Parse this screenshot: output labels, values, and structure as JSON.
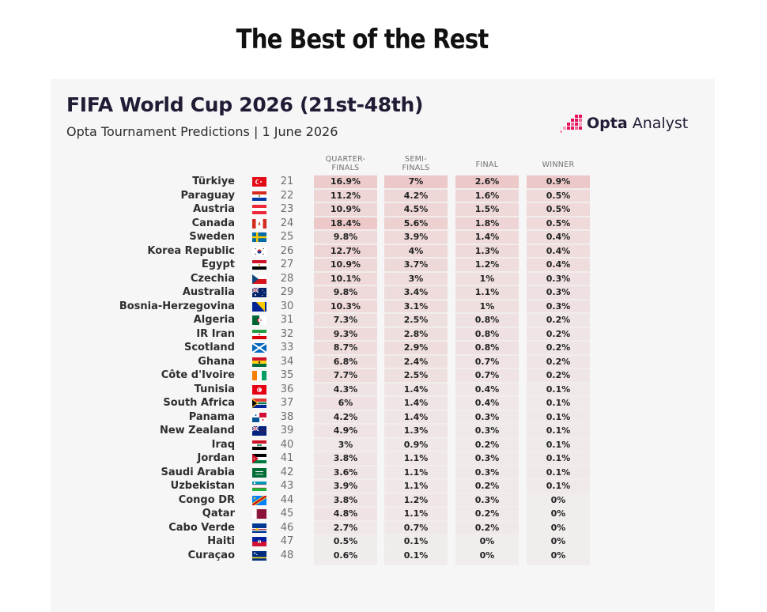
{
  "page_heading": "The Best of the Rest",
  "chart_data": {
    "type": "table",
    "title": "FIFA World Cup 2026 (21st-48th)",
    "subtitle": "Opta Tournament Predictions | 1 June 2026",
    "brand": {
      "name_bold": "Opta",
      "name_light": " Analyst",
      "color": "#e5135f"
    },
    "columns": [
      "QUARTER-FINALS",
      "SEMI-FINALS",
      "FINAL",
      "WINNER"
    ],
    "heat_color": "#e8a4a4",
    "rows": [
      {
        "team": "Türkiye",
        "flag": "tur",
        "rank": "21",
        "qf": "16.9%",
        "sf": "7%",
        "final": "2.6%",
        "winner": "0.9%"
      },
      {
        "team": "Paraguay",
        "flag": "par",
        "rank": "22",
        "qf": "11.2%",
        "sf": "4.2%",
        "final": "1.6%",
        "winner": "0.5%"
      },
      {
        "team": "Austria",
        "flag": "aut",
        "rank": "23",
        "qf": "10.9%",
        "sf": "4.5%",
        "final": "1.5%",
        "winner": "0.5%"
      },
      {
        "team": "Canada",
        "flag": "can",
        "rank": "24",
        "qf": "18.4%",
        "sf": "5.6%",
        "final": "1.8%",
        "winner": "0.5%"
      },
      {
        "team": "Sweden",
        "flag": "swe",
        "rank": "25",
        "qf": "9.8%",
        "sf": "3.9%",
        "final": "1.4%",
        "winner": "0.4%"
      },
      {
        "team": "Korea Republic",
        "flag": "kor",
        "rank": "26",
        "qf": "12.7%",
        "sf": "4%",
        "final": "1.3%",
        "winner": "0.4%"
      },
      {
        "team": "Egypt",
        "flag": "egy",
        "rank": "27",
        "qf": "10.9%",
        "sf": "3.7%",
        "final": "1.2%",
        "winner": "0.4%"
      },
      {
        "team": "Czechia",
        "flag": "cze",
        "rank": "28",
        "qf": "10.1%",
        "sf": "3%",
        "final": "1%",
        "winner": "0.3%"
      },
      {
        "team": "Australia",
        "flag": "aus",
        "rank": "29",
        "qf": "9.8%",
        "sf": "3.4%",
        "final": "1.1%",
        "winner": "0.3%"
      },
      {
        "team": "Bosnia-Herzegovina",
        "flag": "bih",
        "rank": "30",
        "qf": "10.3%",
        "sf": "3.1%",
        "final": "1%",
        "winner": "0.3%"
      },
      {
        "team": "Algeria",
        "flag": "alg",
        "rank": "31",
        "qf": "7.3%",
        "sf": "2.5%",
        "final": "0.8%",
        "winner": "0.2%"
      },
      {
        "team": "IR Iran",
        "flag": "irn",
        "rank": "32",
        "qf": "9.3%",
        "sf": "2.8%",
        "final": "0.8%",
        "winner": "0.2%"
      },
      {
        "team": "Scotland",
        "flag": "sco",
        "rank": "33",
        "qf": "8.7%",
        "sf": "2.9%",
        "final": "0.8%",
        "winner": "0.2%"
      },
      {
        "team": "Ghana",
        "flag": "gha",
        "rank": "34",
        "qf": "6.8%",
        "sf": "2.4%",
        "final": "0.7%",
        "winner": "0.2%"
      },
      {
        "team": "Côte d'Ivoire",
        "flag": "civ",
        "rank": "35",
        "qf": "7.7%",
        "sf": "2.5%",
        "final": "0.7%",
        "winner": "0.2%"
      },
      {
        "team": "Tunisia",
        "flag": "tun",
        "rank": "36",
        "qf": "4.3%",
        "sf": "1.4%",
        "final": "0.4%",
        "winner": "0.1%"
      },
      {
        "team": "South Africa",
        "flag": "rsa",
        "rank": "37",
        "qf": "6%",
        "sf": "1.4%",
        "final": "0.4%",
        "winner": "0.1%"
      },
      {
        "team": "Panama",
        "flag": "pan",
        "rank": "38",
        "qf": "4.2%",
        "sf": "1.4%",
        "final": "0.3%",
        "winner": "0.1%"
      },
      {
        "team": "New Zealand",
        "flag": "nzl",
        "rank": "39",
        "qf": "4.9%",
        "sf": "1.3%",
        "final": "0.3%",
        "winner": "0.1%"
      },
      {
        "team": "Iraq",
        "flag": "irq",
        "rank": "40",
        "qf": "3%",
        "sf": "0.9%",
        "final": "0.2%",
        "winner": "0.1%"
      },
      {
        "team": "Jordan",
        "flag": "jor",
        "rank": "41",
        "qf": "3.8%",
        "sf": "1.1%",
        "final": "0.3%",
        "winner": "0.1%"
      },
      {
        "team": "Saudi Arabia",
        "flag": "ksa",
        "rank": "42",
        "qf": "3.6%",
        "sf": "1.1%",
        "final": "0.3%",
        "winner": "0.1%"
      },
      {
        "team": "Uzbekistan",
        "flag": "uzb",
        "rank": "43",
        "qf": "3.9%",
        "sf": "1.1%",
        "final": "0.2%",
        "winner": "0.1%"
      },
      {
        "team": "Congo DR",
        "flag": "cod",
        "rank": "44",
        "qf": "3.8%",
        "sf": "1.2%",
        "final": "0.3%",
        "winner": "0%"
      },
      {
        "team": "Qatar",
        "flag": "qat",
        "rank": "45",
        "qf": "4.8%",
        "sf": "1.1%",
        "final": "0.2%",
        "winner": "0%"
      },
      {
        "team": "Cabo Verde",
        "flag": "cpv",
        "rank": "46",
        "qf": "2.7%",
        "sf": "0.7%",
        "final": "0.2%",
        "winner": "0%"
      },
      {
        "team": "Haiti",
        "flag": "hai",
        "rank": "47",
        "qf": "0.5%",
        "sf": "0.1%",
        "final": "0%",
        "winner": "0%"
      },
      {
        "team": "Curaçao",
        "flag": "cuw",
        "rank": "48",
        "qf": "0.6%",
        "sf": "0.1%",
        "final": "0%",
        "winner": "0%"
      }
    ]
  }
}
